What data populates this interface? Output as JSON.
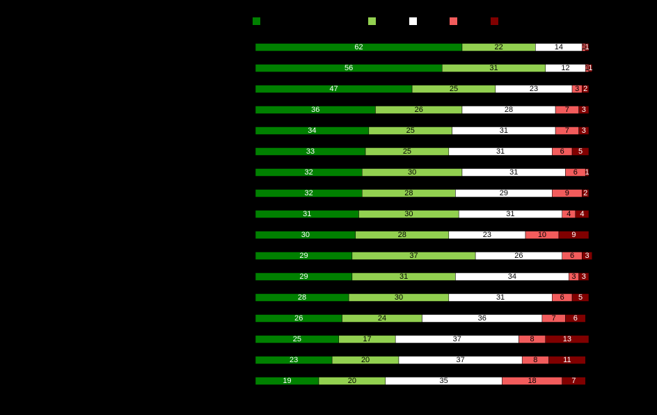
{
  "chart_data": {
    "type": "bar",
    "orientation": "horizontal",
    "stacked": true,
    "legend_position": "top",
    "title": "",
    "xlabel": "",
    "ylabel": "",
    "xlim": [
      0,
      100
    ],
    "categories": [
      "",
      "",
      "",
      "",
      "",
      "",
      "",
      "",
      "",
      "",
      "",
      "",
      "",
      "",
      "",
      "",
      ""
    ],
    "series": [
      {
        "name": "",
        "color": "#008000",
        "label_color": "#ffffff",
        "values": [
          62,
          56,
          47,
          36,
          34,
          33,
          32,
          32,
          31,
          30,
          29,
          29,
          28,
          26,
          25,
          23,
          19
        ]
      },
      {
        "name": "",
        "color": "#92d050",
        "label_color": "#000000",
        "values": [
          22,
          31,
          25,
          26,
          25,
          25,
          30,
          28,
          30,
          28,
          37,
          31,
          30,
          24,
          17,
          20,
          20
        ]
      },
      {
        "name": "",
        "color": "#ffffff",
        "label_color": "#000000",
        "values": [
          14,
          12,
          23,
          28,
          31,
          31,
          31,
          29,
          31,
          23,
          26,
          34,
          31,
          36,
          37,
          37,
          35
        ]
      },
      {
        "name": "",
        "color": "#f25c5c",
        "label_color": "#000000",
        "values": [
          1,
          1,
          3,
          7,
          7,
          6,
          6,
          9,
          4,
          10,
          6,
          3,
          6,
          7,
          8,
          8,
          18
        ]
      },
      {
        "name": "",
        "color": "#800000",
        "label_color": "#ffffff",
        "values": [
          1,
          1,
          2,
          3,
          3,
          5,
          1,
          2,
          4,
          9,
          3,
          3,
          5,
          6,
          13,
          11,
          7
        ]
      }
    ]
  }
}
